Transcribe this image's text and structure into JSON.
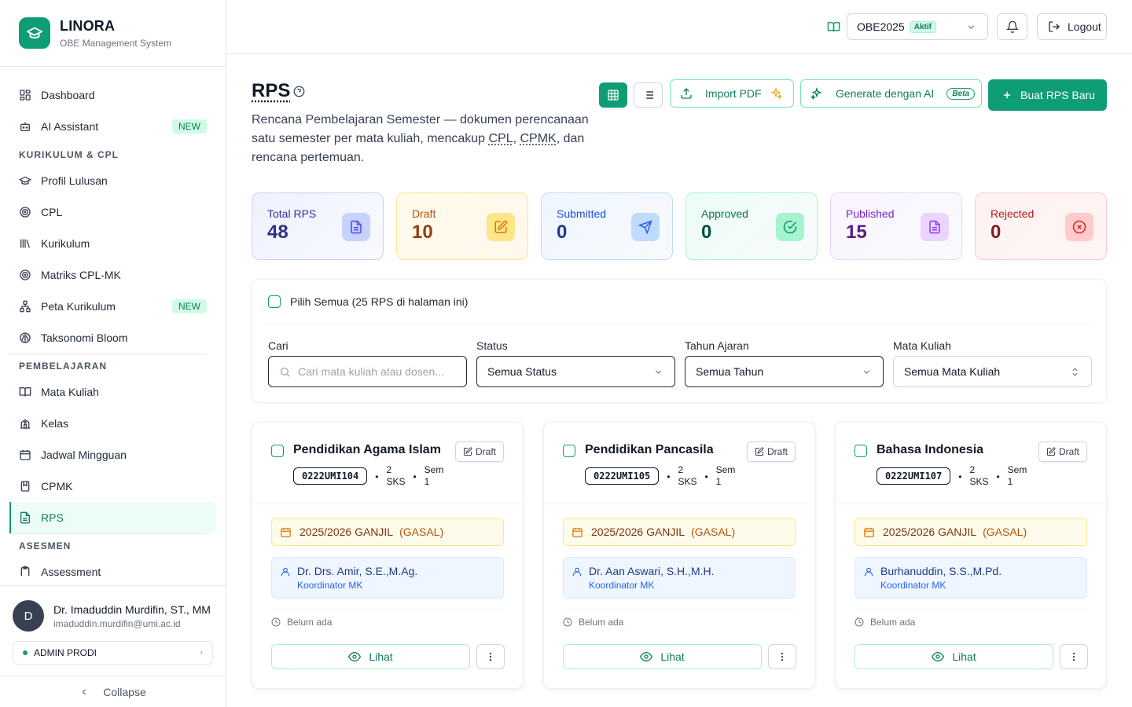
{
  "brand": {
    "name": "LINORA",
    "subtitle": "OBE Management System"
  },
  "sidebar": {
    "top_items": [
      {
        "label": "Dashboard",
        "icon": "dashboard-icon"
      },
      {
        "label": "AI Assistant",
        "icon": "bot-icon",
        "badge": "NEW"
      }
    ],
    "sections": [
      {
        "title": "KURIKULUM & CPL",
        "items": [
          {
            "label": "Profil Lulusan",
            "icon": "graduation-cap-icon"
          },
          {
            "label": "CPL",
            "icon": "target-icon"
          },
          {
            "label": "Kurikulum",
            "icon": "library-icon"
          },
          {
            "label": "Matriks CPL-MK",
            "icon": "target-icon"
          },
          {
            "label": "Peta Kurikulum",
            "icon": "network-icon",
            "badge": "NEW"
          },
          {
            "label": "Taksonomi Bloom",
            "icon": "brain-icon"
          }
        ]
      },
      {
        "title": "PEMBELAJARAN",
        "items": [
          {
            "label": "Mata Kuliah",
            "icon": "book-open-icon"
          },
          {
            "label": "Kelas",
            "icon": "school-icon"
          },
          {
            "label": "Jadwal Mingguan",
            "icon": "calendar-icon"
          },
          {
            "label": "CPMK",
            "icon": "notebook-icon"
          },
          {
            "label": "RPS",
            "icon": "file-text-icon",
            "active": true
          }
        ]
      },
      {
        "title": "ASESMEN",
        "items": [
          {
            "label": "Assessment",
            "icon": "clipboard-icon"
          }
        ]
      }
    ],
    "user": {
      "initial": "D",
      "name": "Dr. Imaduddin Murdifin, ST., MM",
      "email": "imaduddin.murdifin@umi.ac.id",
      "role": "ADMIN PRODI"
    },
    "collapse_label": "Collapse"
  },
  "topbar": {
    "curriculum": "OBE2025",
    "curriculum_status": "Aktif",
    "logout_label": "Logout"
  },
  "header": {
    "title": "RPS",
    "desc_pre": "Rencana Pembelajaran Semester — dokumen perencanaan satu semester per mata kuliah, mencakup ",
    "abbr1": "CPL",
    "desc_mid": ", ",
    "abbr2": "CPMK",
    "desc_post": ", dan rencana pertemuan.",
    "import_label": "Import PDF",
    "ai_label": "Generate dengan AI",
    "ai_badge": "Beta",
    "new_label": "Buat RPS Baru"
  },
  "stats": [
    {
      "label": "Total RPS",
      "value": "48",
      "icon": "file-text-icon"
    },
    {
      "label": "Draft",
      "value": "10",
      "icon": "edit-icon"
    },
    {
      "label": "Submitted",
      "value": "0",
      "icon": "send-icon"
    },
    {
      "label": "Approved",
      "value": "0",
      "icon": "check-circle-icon"
    },
    {
      "label": "Published",
      "value": "15",
      "icon": "file-text-icon"
    },
    {
      "label": "Rejected",
      "value": "0",
      "icon": "x-circle-icon"
    }
  ],
  "filters": {
    "select_all": "Pilih Semua (25 RPS di halaman ini)",
    "search_label": "Cari",
    "search_placeholder": "Cari mata kuliah atau dosen...",
    "status_label": "Status",
    "status_value": "Semua Status",
    "year_label": "Tahun Ajaran",
    "year_value": "Semua Tahun",
    "course_label": "Mata Kuliah",
    "course_value": "Semua Mata Kuliah"
  },
  "cards": [
    {
      "title": "Pendidikan Agama Islam",
      "status": "Draft",
      "code": "0222UMI104",
      "sks_num": "2",
      "sks_label": "SKS",
      "sem_label": "Sem",
      "sem_num": "1",
      "period": "2025/2026 GANJIL",
      "period_type": "(GASAL)",
      "lecturer": "Dr. Drs. Amir, S.E.,M.Ag.",
      "lecturer_role": "Koordinator MK",
      "updated": "Belum ada",
      "view_label": "Lihat"
    },
    {
      "title": "Pendidikan Pancasila",
      "status": "Draft",
      "code": "0222UMI105",
      "sks_num": "2",
      "sks_label": "SKS",
      "sem_label": "Sem",
      "sem_num": "1",
      "period": "2025/2026 GANJIL",
      "period_type": "(GASAL)",
      "lecturer": "Dr. Aan Aswari, S.H.,M.H.",
      "lecturer_role": "Koordinator MK",
      "updated": "Belum ada",
      "view_label": "Lihat"
    },
    {
      "title": "Bahasa Indonesia",
      "status": "Draft",
      "code": "0222UMI107",
      "sks_num": "2",
      "sks_label": "SKS",
      "sem_label": "Sem",
      "sem_num": "1",
      "period": "2025/2026 GANJIL",
      "period_type": "(GASAL)",
      "lecturer": "Burhanuddin, S.S.,M.Pd.",
      "lecturer_role": "Koordinator MK",
      "updated": "Belum ada",
      "view_label": "Lihat"
    }
  ]
}
